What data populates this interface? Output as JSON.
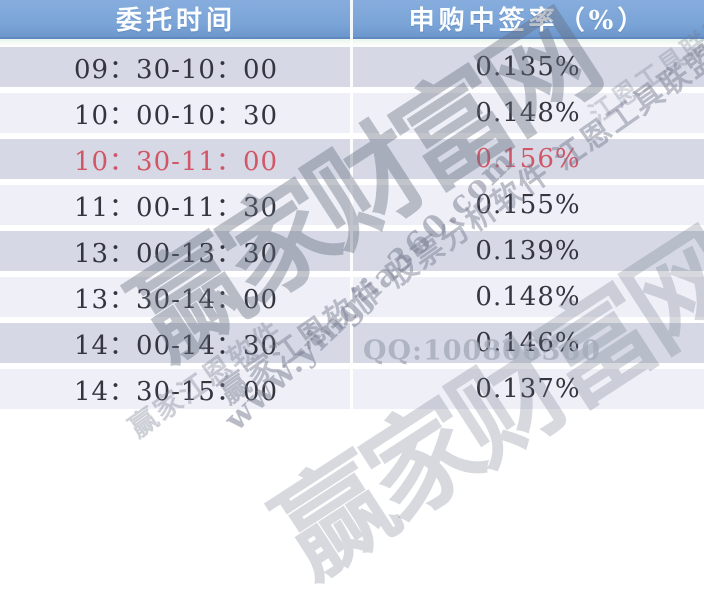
{
  "colors": {
    "header_bg": "#7BA4D7",
    "header_text": "#FBFDFF",
    "row_dark": "#D6D9E5",
    "row_light": "#EFF0F7",
    "body_text": "#34353F",
    "highlight_text": "#D15768",
    "watermark_gray": "#6E7488"
  },
  "table": {
    "headers": [
      "委托时间",
      "申购中签率（%）"
    ],
    "rows": [
      {
        "time": "09：30-10：00",
        "rate": "0.135%",
        "highlight": false
      },
      {
        "time": "10：00-10：30",
        "rate": "0.148%",
        "highlight": false
      },
      {
        "time": "10：30-11：00",
        "rate": "0.156%",
        "highlight": true
      },
      {
        "time": "11：00-11：30",
        "rate": "0.155%",
        "highlight": false
      },
      {
        "time": "13：00-13：30",
        "rate": "0.139%",
        "highlight": false
      },
      {
        "time": "13：30-14：00",
        "rate": "0.148%",
        "highlight": false
      },
      {
        "time": "14：00-14：30",
        "rate": "0.146%",
        "highlight": false
      },
      {
        "time": "14：30-15：00",
        "rate": "0.137%",
        "highlight": false
      }
    ]
  },
  "watermark": {
    "brand_large": "赢家财富网",
    "software_line": "赢家江恩软件 股票分析软件 江恩工具联盟",
    "software_line_top": "江恩工具联盟",
    "software_line_bottom": "赢家江恩软件",
    "url": "www.yingjia360.com",
    "qq": "QQ:100806360"
  },
  "chart_data": {
    "type": "table",
    "title": "",
    "columns": [
      "委托时间",
      "申购中签率（%）"
    ],
    "categories": [
      "09:30-10:00",
      "10:00-10:30",
      "10:30-11:00",
      "11:00-11:30",
      "13:00-13:30",
      "13:30-14:00",
      "14:00-14:30",
      "14:30-15:00"
    ],
    "values": [
      0.135,
      0.148,
      0.156,
      0.155,
      0.139,
      0.148,
      0.146,
      0.137
    ],
    "highlighted_category": "10:30-11:00",
    "highlighted_value": 0.156
  }
}
